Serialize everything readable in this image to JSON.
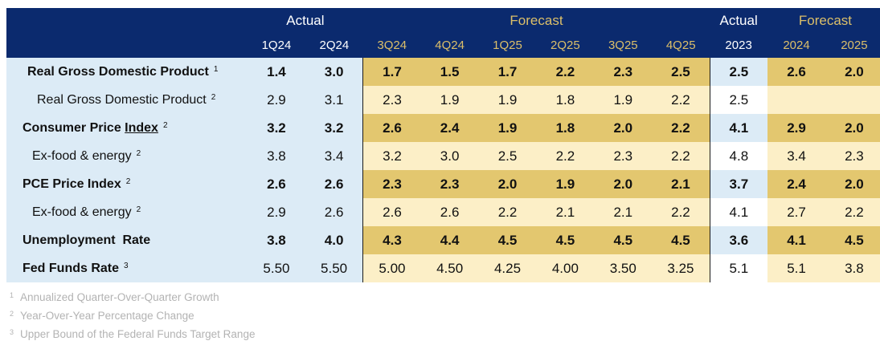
{
  "header": {
    "groups": {
      "actual_q": "Actual",
      "forecast_q": "Forecast",
      "actual_y": "Actual",
      "forecast_y": "Forecast"
    },
    "periods": [
      "1Q24",
      "2Q24",
      "3Q24",
      "4Q24",
      "1Q25",
      "2Q25",
      "3Q25",
      "4Q25",
      "2023",
      "2024",
      "2025"
    ]
  },
  "rows": [
    {
      "label": "Real Gross Domestic Product",
      "note": "1",
      "values": [
        "1.4",
        "3.0",
        "1.7",
        "1.5",
        "1.7",
        "2.2",
        "2.3",
        "2.5",
        "2.5",
        "2.6",
        "2.0"
      ]
    },
    {
      "label": "Real Gross Domestic Product",
      "note": "2",
      "values": [
        "2.9",
        "3.1",
        "2.3",
        "1.9",
        "1.9",
        "1.8",
        "1.9",
        "2.2",
        "2.5",
        "",
        ""
      ]
    },
    {
      "label_prefix": "Consumer Price ",
      "label_link": "Index",
      "note": "2",
      "values": [
        "3.2",
        "3.2",
        "2.6",
        "2.4",
        "1.9",
        "1.8",
        "2.0",
        "2.2",
        "4.1",
        "2.9",
        "2.0"
      ]
    },
    {
      "label": "Ex-food & energy",
      "note": "2",
      "values": [
        "3.8",
        "3.4",
        "3.2",
        "3.0",
        "2.5",
        "2.2",
        "2.3",
        "2.2",
        "4.8",
        "3.4",
        "2.3"
      ]
    },
    {
      "label": "PCE Price Index",
      "note": "2",
      "values": [
        "2.6",
        "2.6",
        "2.3",
        "2.3",
        "2.0",
        "1.9",
        "2.0",
        "2.1",
        "3.7",
        "2.4",
        "2.0"
      ]
    },
    {
      "label": "Ex-food & energy",
      "note": "2",
      "values": [
        "2.9",
        "2.6",
        "2.6",
        "2.6",
        "2.2",
        "2.1",
        "2.1",
        "2.2",
        "4.1",
        "2.7",
        "2.2"
      ]
    },
    {
      "label": "Unemployment  Rate",
      "note": "",
      "values": [
        "3.8",
        "4.0",
        "4.3",
        "4.4",
        "4.5",
        "4.5",
        "4.5",
        "4.5",
        "3.6",
        "4.1",
        "4.5"
      ]
    },
    {
      "label": "Fed Funds Rate",
      "note": "3",
      "values": [
        "5.50",
        "5.50",
        "5.00",
        "4.50",
        "4.25",
        "4.00",
        "3.50",
        "3.25",
        "5.1",
        "5.1",
        "3.8"
      ]
    }
  ],
  "footnotes": [
    {
      "num": "1",
      "text": "Annualized Quarter-Over-Quarter Growth"
    },
    {
      "num": "2",
      "text": "Year-Over-Year Percentage Change"
    },
    {
      "num": "3",
      "text": "Upper Bound of the Federal Funds Target Range"
    }
  ]
}
